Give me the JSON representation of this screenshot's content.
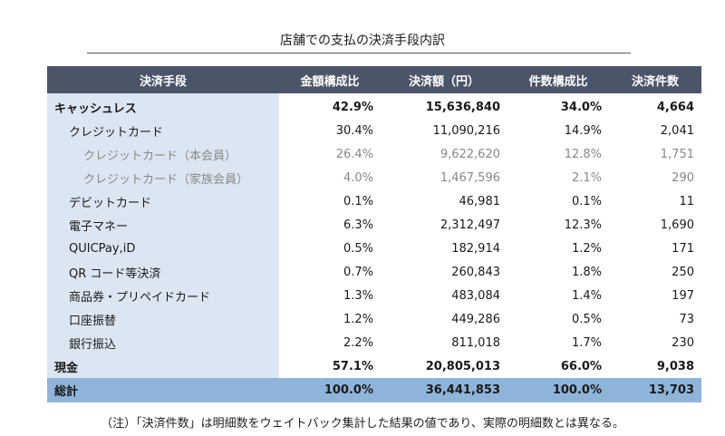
{
  "title": "店舗での支払の決済手段内訳",
  "headers": [
    "決済手段",
    "金額構成比",
    "決済額（円）",
    "件数構成比",
    "決済件数"
  ],
  "rows": [
    {
      "label": "キャッシュレス",
      "amount_ratio": "42.9%",
      "amount": "15,636,840",
      "count_ratio": "34.0%",
      "count": "4,664"
    },
    {
      "label": "クレジットカード",
      "amount_ratio": "30.4%",
      "amount": "11,090,216",
      "count_ratio": "14.9%",
      "count": "2,041"
    },
    {
      "label": "クレジットカード（本会員）",
      "amount_ratio": "26.4%",
      "amount": "9,622,620",
      "count_ratio": "12.8%",
      "count": "1,751"
    },
    {
      "label": "クレジットカード（家族会員）",
      "amount_ratio": "4.0%",
      "amount": "1,467,596",
      "count_ratio": "2.1%",
      "count": "290"
    },
    {
      "label": "デビットカード",
      "amount_ratio": "0.1%",
      "amount": "46,981",
      "count_ratio": "0.1%",
      "count": "11"
    },
    {
      "label": "電子マネー",
      "amount_ratio": "6.3%",
      "amount": "2,312,497",
      "count_ratio": "12.3%",
      "count": "1,690"
    },
    {
      "label": "QUICPay,iD",
      "amount_ratio": "0.5%",
      "amount": "182,914",
      "count_ratio": "1.2%",
      "count": "171"
    },
    {
      "label": "QR コード等決済",
      "amount_ratio": "0.7%",
      "amount": "260,843",
      "count_ratio": "1.8%",
      "count": "250"
    },
    {
      "label": "商品券・プリペイドカード",
      "amount_ratio": "1.3%",
      "amount": "483,084",
      "count_ratio": "1.4%",
      "count": "197"
    },
    {
      "label": "口座振替",
      "amount_ratio": "1.2%",
      "amount": "449,286",
      "count_ratio": "0.5%",
      "count": "73"
    },
    {
      "label": "銀行振込",
      "amount_ratio": "2.2%",
      "amount": "811,018",
      "count_ratio": "1.7%",
      "count": "230"
    },
    {
      "label": "現金",
      "amount_ratio": "57.1%",
      "amount": "20,805,013",
      "count_ratio": "66.0%",
      "count": "9,038"
    },
    {
      "label": "総計",
      "amount_ratio": "100.0%",
      "amount": "36,441,853",
      "count_ratio": "100.0%",
      "count": "13,703"
    }
  ],
  "note": "（注）「決済件数」は明細数をウェイトバック集計した結果の値であり、実際の明細数とは異なる。",
  "colors": {
    "header_bg": "#4a5568",
    "label_col_bg": "#dce6f2",
    "total_bg": "#8fb4d9",
    "sub_text": "#888888"
  }
}
